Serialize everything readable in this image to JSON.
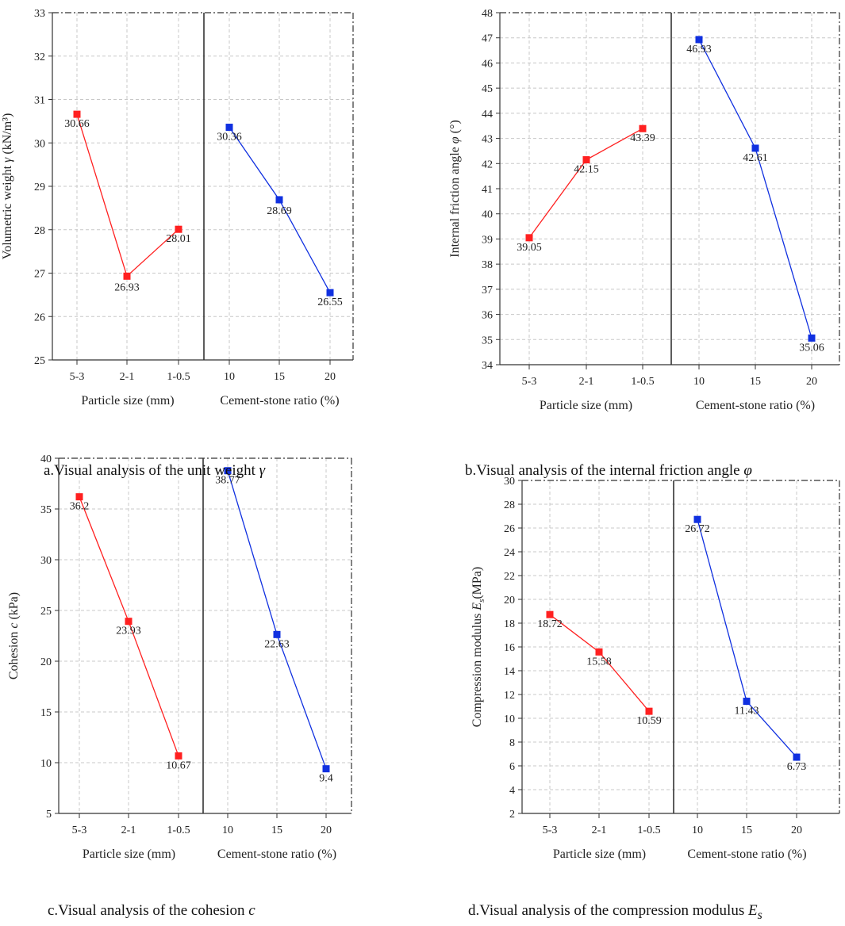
{
  "chart_data": [
    {
      "type": "line",
      "id": "a",
      "ylabel_pre": "Volumetric weight ",
      "ylabel_sym": "γ",
      "ylabel_post": " (kN/m³)",
      "ylim": [
        25,
        33
      ],
      "yticks": [
        25,
        26,
        27,
        28,
        29,
        30,
        31,
        32,
        33
      ],
      "groups": [
        {
          "xlabel": "Particle size (mm)",
          "categories": [
            "5-3",
            "2-1",
            "1-0.5"
          ],
          "values": [
            30.66,
            26.93,
            28.01
          ],
          "labels": [
            "30.66",
            "26.93",
            "28.01"
          ],
          "color": "#ff2020"
        },
        {
          "xlabel": "Cement-stone ratio (%)",
          "categories": [
            "10",
            "15",
            "20"
          ],
          "values": [
            30.36,
            28.69,
            26.55
          ],
          "labels": [
            "30.36",
            "28.69",
            "26.55"
          ],
          "color": "#1030e0"
        }
      ],
      "caption_pre": "a.Visual analysis of the unit weight ",
      "caption_sym": "γ",
      "caption_sub": ""
    },
    {
      "type": "line",
      "id": "b",
      "ylabel_pre": "Internal friction angle ",
      "ylabel_sym": "φ",
      "ylabel_post": " (°)",
      "ylim": [
        34,
        48
      ],
      "yticks": [
        34,
        35,
        36,
        37,
        38,
        39,
        40,
        41,
        42,
        43,
        44,
        45,
        46,
        47,
        48
      ],
      "groups": [
        {
          "xlabel": "Particle size (mm)",
          "categories": [
            "5-3",
            "2-1",
            "1-0.5"
          ],
          "values": [
            39.05,
            42.15,
            43.39
          ],
          "labels": [
            "39.05",
            "42.15",
            "43.39"
          ],
          "color": "#ff2020"
        },
        {
          "xlabel": "Cement-stone ratio (%)",
          "categories": [
            "10",
            "15",
            "20"
          ],
          "values": [
            46.93,
            42.61,
            35.06
          ],
          "labels": [
            "46.93",
            "42.61",
            "35.06"
          ],
          "color": "#1030e0"
        }
      ],
      "caption_pre": "b.Visual analysis of the internal friction angle ",
      "caption_sym": "φ",
      "caption_sub": ""
    },
    {
      "type": "line",
      "id": "c",
      "ylabel_pre": "Cohesion ",
      "ylabel_sym": "c",
      "ylabel_post": " (kPa)",
      "ylim": [
        5,
        40
      ],
      "yticks": [
        5,
        10,
        15,
        20,
        25,
        30,
        35,
        40
      ],
      "groups": [
        {
          "xlabel": "Particle size (mm)",
          "categories": [
            "5-3",
            "2-1",
            "1-0.5"
          ],
          "values": [
            36.2,
            23.93,
            10.67
          ],
          "labels": [
            "36.2",
            "23.93",
            "10.67"
          ],
          "color": "#ff2020"
        },
        {
          "xlabel": "Cement-stone ratio (%)",
          "categories": [
            "10",
            "15",
            "20"
          ],
          "values": [
            38.77,
            22.63,
            9.4
          ],
          "labels": [
            "38.77",
            "22.63",
            "9.4"
          ],
          "color": "#1030e0"
        }
      ],
      "caption_pre": "c.Visual analysis of the cohesion ",
      "caption_sym": "c",
      "caption_sub": ""
    },
    {
      "type": "line",
      "id": "d",
      "ylabel_pre": "Compression modulus ",
      "ylabel_sym": "E",
      "ylabel_sub": "s",
      "ylabel_post": "(MPa)",
      "ylim": [
        2,
        30
      ],
      "yticks": [
        2,
        4,
        6,
        8,
        10,
        12,
        14,
        16,
        18,
        20,
        22,
        24,
        26,
        28,
        30
      ],
      "groups": [
        {
          "xlabel": "Particle size (mm)",
          "categories": [
            "5-3",
            "2-1",
            "1-0.5"
          ],
          "values": [
            18.72,
            15.58,
            10.59
          ],
          "labels": [
            "18.72",
            "15.58",
            "10.59"
          ],
          "color": "#ff2020"
        },
        {
          "xlabel": "Cement-stone ratio (%)",
          "categories": [
            "10",
            "15",
            "20"
          ],
          "values": [
            26.72,
            11.43,
            6.73
          ],
          "labels": [
            "26.72",
            "11.43",
            "6.73"
          ],
          "color": "#1030e0"
        }
      ],
      "caption_pre": "d.Visual analysis of the compression modulus ",
      "caption_sym": "E",
      "caption_sub": "s"
    }
  ]
}
